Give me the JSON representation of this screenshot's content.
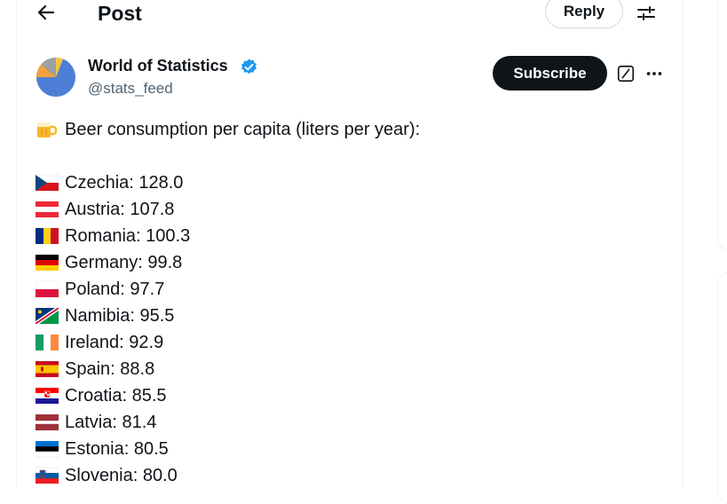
{
  "header": {
    "title": "Post",
    "reply_label": "Reply",
    "back_icon": "arrow-left-icon",
    "settings_icon": "sliders-icon"
  },
  "author": {
    "name": "World of Statistics",
    "handle": "@stats_feed",
    "verified_color": "#1d9bf0",
    "subscribe_label": "Subscribe"
  },
  "post": {
    "intro": "Beer consumption per capita (liters per year):",
    "countries": [
      {
        "text": "Czechia: 128.0"
      },
      {
        "text": "Austria: 107.8"
      },
      {
        "text": "Romania: 100.3"
      },
      {
        "text": "Germany: 99.8"
      },
      {
        "text": "Poland: 97.7"
      },
      {
        "text": "Namibia: 95.5"
      },
      {
        "text": "Ireland: 92.9"
      },
      {
        "text": "Spain: 88.8"
      },
      {
        "text": "Croatia: 85.5"
      },
      {
        "text": "Latvia: 81.4"
      },
      {
        "text": "Estonia: 80.5"
      },
      {
        "text": "Slovenia: 80.0"
      }
    ]
  }
}
